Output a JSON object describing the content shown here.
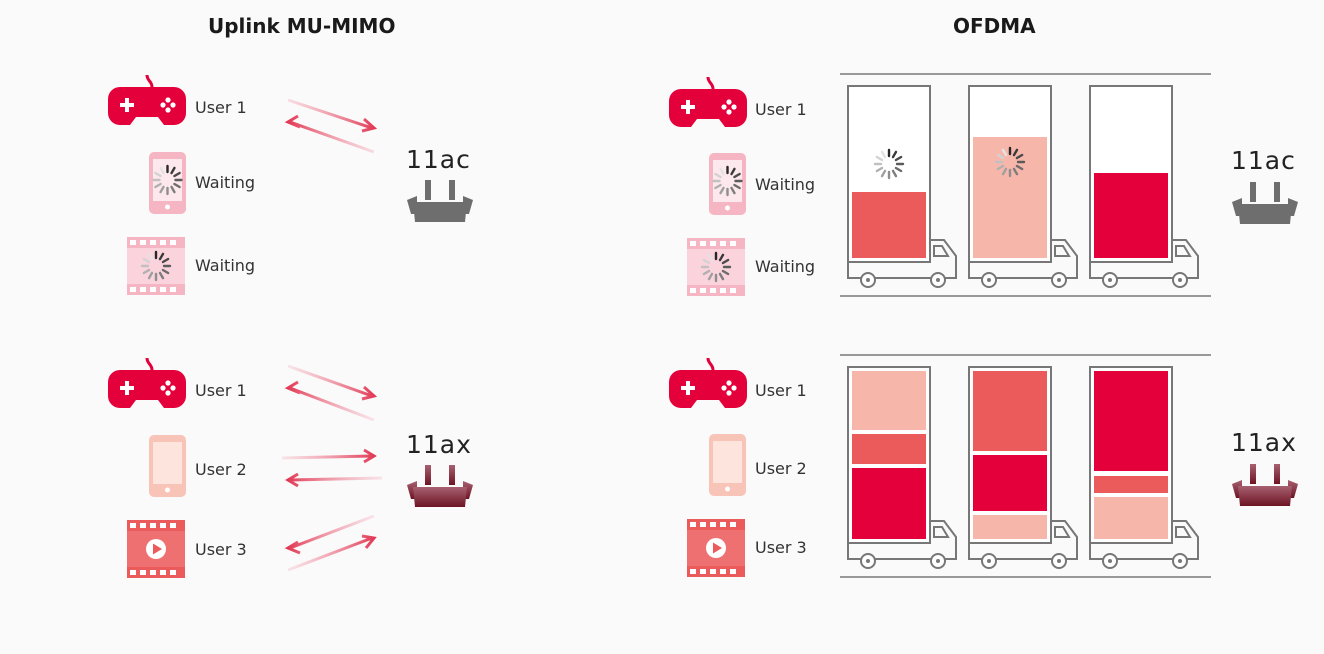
{
  "left_panel": {
    "title": "Uplink MU-MIMO",
    "ac_row": {
      "standard": "11ac",
      "devices": [
        {
          "icon": "gamepad-icon",
          "label": "User 1",
          "color": "#e4003a"
        },
        {
          "icon": "phone-icon",
          "label": "Waiting",
          "color": "#f6b5c3"
        },
        {
          "icon": "film-icon",
          "label": "Waiting",
          "color": "#f6b5c3"
        }
      ]
    },
    "ax_row": {
      "standard": "11ax",
      "devices": [
        {
          "icon": "gamepad-icon",
          "label": "User 1",
          "color": "#e4003a"
        },
        {
          "icon": "phone-icon",
          "label": "User 2",
          "color": "#f8c4b8"
        },
        {
          "icon": "film-icon",
          "label": "User 3",
          "color": "#ec5b5b"
        }
      ]
    }
  },
  "right_panel": {
    "title": "OFDMA",
    "ac_row": {
      "standard": "11ac",
      "devices": [
        {
          "icon": "gamepad-icon",
          "label": "User 1"
        },
        {
          "icon": "phone-icon",
          "label": "Waiting"
        },
        {
          "icon": "film-icon",
          "label": "Waiting"
        }
      ]
    },
    "ax_row": {
      "standard": "11ax",
      "devices": [
        {
          "icon": "gamepad-icon",
          "label": "User 1"
        },
        {
          "icon": "phone-icon",
          "label": "User 2"
        },
        {
          "icon": "film-icon",
          "label": "User 3"
        }
      ]
    }
  },
  "colors": {
    "user1": "#e4003a",
    "user2": "#f7b6aa",
    "user3": "#ec5b5b",
    "router_ac": "#6e6e6e",
    "router_ax": "#7a1d2a"
  }
}
